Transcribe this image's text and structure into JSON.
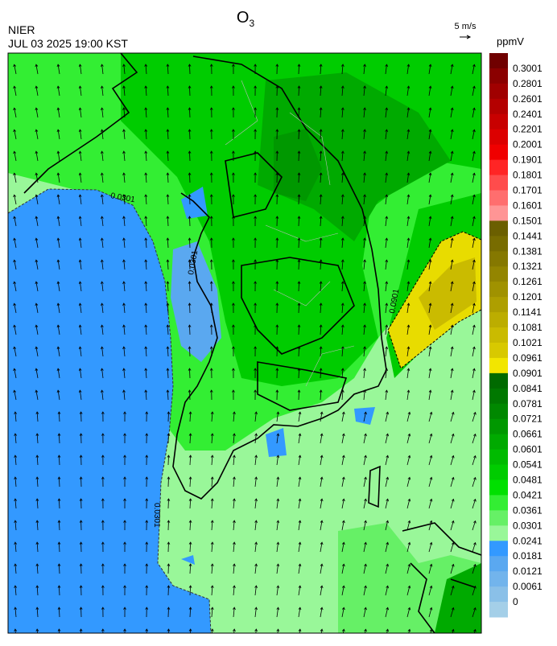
{
  "header": {
    "title_main": "O",
    "title_sub": "3",
    "agency": "NIER",
    "datetime": "JUL 03 2025 19:00 KST",
    "wind_scale": "5 m/s"
  },
  "colorbar": {
    "unit": "ppmV",
    "levels": [
      0.3001,
      0.2801,
      0.2601,
      0.2401,
      0.2201,
      0.2001,
      0.1901,
      0.1801,
      0.1701,
      0.1601,
      0.1501,
      0.1441,
      0.1381,
      0.1321,
      0.1261,
      0.1201,
      0.1141,
      0.1081,
      0.1021,
      0.0961,
      0.0901,
      0.0841,
      0.0781,
      0.0721,
      0.0661,
      0.0601,
      0.0541,
      0.0481,
      0.0421,
      0.0361,
      0.0301,
      0.0241,
      0.0181,
      0.0121,
      0.0061,
      0
    ],
    "colors": [
      "#700000",
      "#8b0000",
      "#a00000",
      "#b40000",
      "#c80000",
      "#dc0000",
      "#f00000",
      "#ff2525",
      "#ff4c4c",
      "#ff6e6e",
      "#ff9595",
      "#6b5f00",
      "#786c00",
      "#857800",
      "#938500",
      "#a09200",
      "#ae9f00",
      "#bcad00",
      "#cabb00",
      "#d8c900",
      "#f2e600",
      "#006a00",
      "#007800",
      "#008800",
      "#009800",
      "#00aa00",
      "#00bb00",
      "#00cc00",
      "#00e000",
      "#33ee33",
      "#66f066",
      "#99f799",
      "#3399ff",
      "#5aa8f0",
      "#72b4ec",
      "#8ac0e8",
      "#a4cfe8"
    ]
  },
  "map": {
    "contour_labels": [
      "0.0301",
      "0.0301",
      "0.0901",
      "0.0301"
    ]
  }
}
